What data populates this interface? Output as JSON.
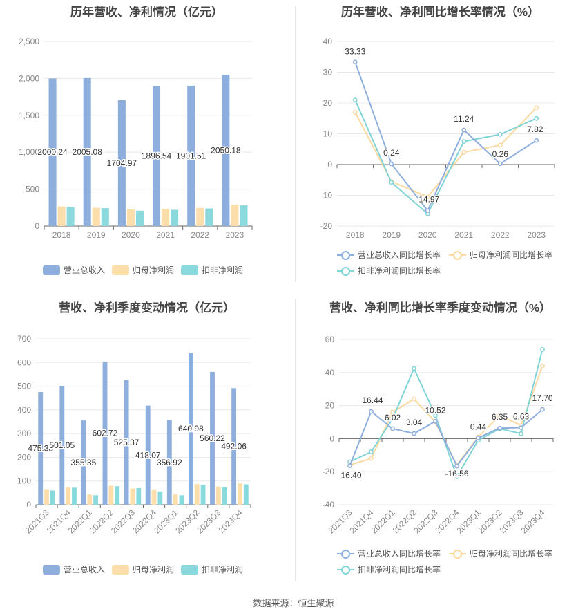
{
  "source_text": "数据来源：恒生聚源",
  "colors": {
    "revenue": "#8eaedd",
    "netprofit": "#fbdeaa",
    "deducted": "#8ad9dc",
    "revenue_line": "#8eaedd",
    "netprofit_line": "#fcd9a0",
    "deducted_line": "#80d4d6"
  },
  "panels": [
    {
      "title": "历年营收、净利情况（亿元）",
      "legend": [
        "营业总收入",
        "归母净利润",
        "扣非净利润"
      ]
    },
    {
      "title": "历年营收、净利同比增长率情况（%）",
      "legend": [
        "营业总收入同比增长率",
        "归母净利润同比增长率",
        "扣非净利润同比增长率"
      ]
    },
    {
      "title": "营收、净利季度变动情况（亿元）",
      "legend": [
        "营业总收入",
        "归母净利润",
        "扣非净利润"
      ]
    },
    {
      "title": "营收、净利同比增长率季度变动情况（%）",
      "legend": [
        "营业总收入同比增长率",
        "归母净利润同比增长率",
        "扣非净利润同比增长率"
      ]
    }
  ],
  "chart_data": [
    {
      "type": "bar",
      "title": "历年营收、净利情况（亿元）",
      "categories": [
        "2018",
        "2019",
        "2020",
        "2021",
        "2022",
        "2023"
      ],
      "ylim": [
        0,
        2500
      ],
      "yticks": [
        "0",
        "500",
        "1,000",
        "1,500",
        "2,000",
        "2,500"
      ],
      "series": [
        {
          "name": "营业总收入",
          "values": [
            2000.24,
            2005.08,
            1704.97,
            1896.54,
            1901.51,
            2050.18
          ],
          "labels": [
            "2000.24",
            "2005.08",
            "1704.97",
            "1896.54",
            "1901.51",
            "2050.18"
          ]
        },
        {
          "name": "归母净利润",
          "values": [
            265,
            248,
            225,
            232,
            245,
            292
          ]
        },
        {
          "name": "扣非净利润",
          "values": [
            258,
            243,
            208,
            220,
            238,
            280
          ]
        }
      ],
      "legend_position": "bottom"
    },
    {
      "type": "line",
      "title": "历年营收、净利同比增长率情况（%）",
      "categories": [
        "2018",
        "2019",
        "2020",
        "2021",
        "2022",
        "2023"
      ],
      "ylim": [
        -20,
        40
      ],
      "yticks": [
        "-20",
        "-10",
        "0",
        "10",
        "20",
        "30",
        "40"
      ],
      "series": [
        {
          "name": "营业总收入同比增长率",
          "values": [
            33.33,
            0.24,
            -14.97,
            11.24,
            0.26,
            7.82
          ],
          "labels": [
            "33.33",
            "0.24",
            "-14.97",
            "11.24",
            "0.26",
            "7.82"
          ]
        },
        {
          "name": "归母净利润同比增长率",
          "values": [
            17.0,
            -5.5,
            -10.5,
            4.0,
            6.3,
            18.5
          ]
        },
        {
          "name": "扣非净利润同比增长率",
          "values": [
            21.0,
            -5.8,
            -16.0,
            7.5,
            9.8,
            15.0
          ]
        }
      ],
      "legend_position": "bottom"
    },
    {
      "type": "bar",
      "title": "营收、净利季度变动情况（亿元）",
      "categories": [
        "2021Q3",
        "2021Q4",
        "2022Q1",
        "2022Q2",
        "2022Q3",
        "2022Q4",
        "2023Q1",
        "2023Q2",
        "2023Q3",
        "2023Q4"
      ],
      "ylim": [
        0,
        700
      ],
      "yticks": [
        "0",
        "100",
        "200",
        "300",
        "400",
        "500",
        "600",
        "700"
      ],
      "series": [
        {
          "name": "营业总收入",
          "values": [
            475.33,
            501.05,
            355.35,
            602.72,
            525.37,
            418.07,
            356.92,
            640.98,
            560.22,
            492.06
          ],
          "labels": [
            "475.33",
            "501.05",
            "355.35",
            "602.72",
            "525.37",
            "418.07",
            "356.92",
            "640.98",
            "560.22",
            "492.06"
          ]
        },
        {
          "name": "归母净利润",
          "values": [
            63,
            75,
            43,
            80,
            68,
            62,
            44,
            87,
            77,
            90
          ]
        },
        {
          "name": "扣非净利润",
          "values": [
            60,
            72,
            40,
            78,
            70,
            56,
            40,
            84,
            73,
            86
          ]
        }
      ],
      "legend_position": "bottom"
    },
    {
      "type": "line",
      "title": "营收、净利同比增长率季度变动情况（%）",
      "categories": [
        "2021Q3",
        "2021Q4",
        "2022Q1",
        "2022Q2",
        "2022Q3",
        "2022Q4",
        "2023Q1",
        "2023Q2",
        "2023Q3",
        "2023Q4"
      ],
      "ylim": [
        -40,
        60
      ],
      "yticks": [
        "-40",
        "-20",
        "0",
        "20",
        "40",
        "60"
      ],
      "series": [
        {
          "name": "营业总收入同比增长率",
          "values": [
            -16.4,
            16.44,
            6.02,
            3.04,
            10.52,
            -16.56,
            0.44,
            6.35,
            6.63,
            17.7
          ],
          "labels": [
            "-16.40",
            "16.44",
            "6.02",
            "3.04",
            "10.52",
            "-16.56",
            "0.44",
            "6.35",
            "6.63",
            "17.70"
          ]
        },
        {
          "name": "归母净利润同比增长率",
          "values": [
            -16.0,
            -12.0,
            16.0,
            24.0,
            10.0,
            -16.0,
            1.0,
            14.0,
            8.0,
            44.0
          ]
        },
        {
          "name": "扣非净利润同比增长率",
          "values": [
            -14.0,
            -8.0,
            12.0,
            42.5,
            14.0,
            -23.0,
            -1.0,
            6.0,
            3.0,
            54.0
          ]
        }
      ],
      "legend_position": "bottom"
    }
  ]
}
